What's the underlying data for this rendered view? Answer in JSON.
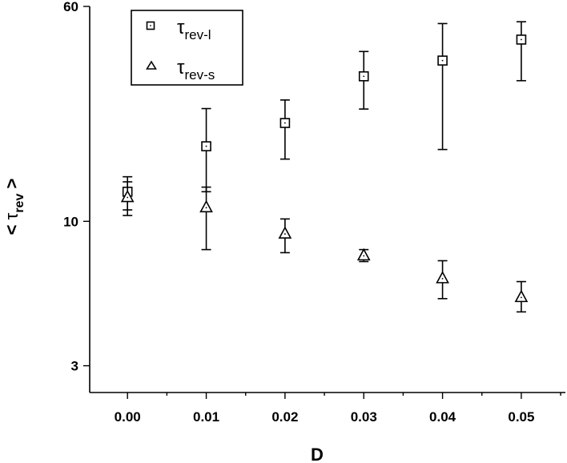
{
  "chart_data": {
    "type": "scatter",
    "x_axis": {
      "label": "D",
      "ticks": [
        "0.00",
        "0.01",
        "0.02",
        "0.03",
        "0.04",
        "0.05"
      ],
      "tick_values": [
        0.0,
        0.01,
        0.02,
        0.03,
        0.04,
        0.05
      ],
      "range": [
        -0.0048,
        0.0556
      ]
    },
    "y_axis": {
      "label_symbol": "τ",
      "label_sub": "rev",
      "label_left": "<",
      "label_right": ">",
      "scale": "log",
      "ticks": [
        "3",
        "10",
        "60"
      ],
      "tick_values": [
        3,
        10,
        60
      ],
      "range": [
        2.4,
        60
      ]
    },
    "legend": {
      "placement": "top-left",
      "entries": [
        {
          "symbol": "τ",
          "sub": "rev-l",
          "marker": "square"
        },
        {
          "symbol": "τ",
          "sub": "rev-s",
          "marker": "triangle"
        }
      ]
    },
    "series": [
      {
        "legend_index": 0,
        "marker": "square",
        "x": [
          0.0,
          0.01,
          0.02,
          0.03,
          0.04,
          0.05
        ],
        "y": [
          12.8,
          18.7,
          22.7,
          33.5,
          38.2,
          45.5
        ],
        "y_low": [
          11.0,
          12.8,
          16.8,
          25.5,
          18.2,
          32.3
        ],
        "y_high": [
          14.5,
          25.6,
          27.5,
          41.2,
          52.0,
          52.8
        ]
      },
      {
        "legend_index": 1,
        "marker": "triangle",
        "x": [
          0.0,
          0.01,
          0.02,
          0.03,
          0.04,
          0.05
        ],
        "y": [
          12.2,
          11.2,
          9.0,
          7.5,
          6.2,
          5.3
        ],
        "y_low": [
          10.5,
          7.9,
          7.7,
          7.15,
          5.25,
          4.7
        ],
        "y_high": [
          13.9,
          13.3,
          10.2,
          7.9,
          7.2,
          6.05
        ]
      }
    ]
  }
}
